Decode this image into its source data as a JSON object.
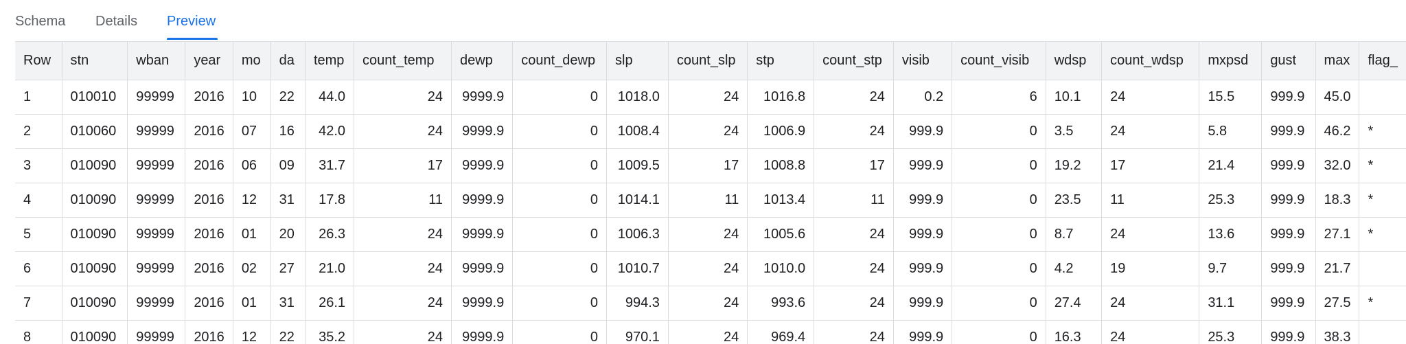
{
  "tabs": [
    {
      "label": "Schema",
      "active": false
    },
    {
      "label": "Details",
      "active": false
    },
    {
      "label": "Preview",
      "active": true
    }
  ],
  "accent_color": "#1a73e8",
  "table": {
    "columns": [
      "Row",
      "stn",
      "wban",
      "year",
      "mo",
      "da",
      "temp",
      "count_temp",
      "dewp",
      "count_dewp",
      "slp",
      "count_slp",
      "stp",
      "count_stp",
      "visib",
      "count_visib",
      "wdsp",
      "count_wdsp",
      "mxpsd",
      "gust",
      "max",
      "flag_"
    ],
    "rows": [
      [
        "1",
        "010010",
        "99999",
        "2016",
        "10",
        "22",
        "44.0",
        "24",
        "9999.9",
        "0",
        "1018.0",
        "24",
        "1016.8",
        "24",
        "0.2",
        "6",
        "10.1",
        "24",
        "15.5",
        "999.9",
        "45.0",
        ""
      ],
      [
        "2",
        "010060",
        "99999",
        "2016",
        "07",
        "16",
        "42.0",
        "24",
        "9999.9",
        "0",
        "1008.4",
        "24",
        "1006.9",
        "24",
        "999.9",
        "0",
        "3.5",
        "24",
        "5.8",
        "999.9",
        "46.2",
        "*"
      ],
      [
        "3",
        "010090",
        "99999",
        "2016",
        "06",
        "09",
        "31.7",
        "17",
        "9999.9",
        "0",
        "1009.5",
        "17",
        "1008.8",
        "17",
        "999.9",
        "0",
        "19.2",
        "17",
        "21.4",
        "999.9",
        "32.0",
        "*"
      ],
      [
        "4",
        "010090",
        "99999",
        "2016",
        "12",
        "31",
        "17.8",
        "11",
        "9999.9",
        "0",
        "1014.1",
        "11",
        "1013.4",
        "11",
        "999.9",
        "0",
        "23.5",
        "11",
        "25.3",
        "999.9",
        "18.3",
        "*"
      ],
      [
        "5",
        "010090",
        "99999",
        "2016",
        "01",
        "20",
        "26.3",
        "24",
        "9999.9",
        "0",
        "1006.3",
        "24",
        "1005.6",
        "24",
        "999.9",
        "0",
        "8.7",
        "24",
        "13.6",
        "999.9",
        "27.1",
        "*"
      ],
      [
        "6",
        "010090",
        "99999",
        "2016",
        "02",
        "27",
        "21.0",
        "24",
        "9999.9",
        "0",
        "1010.7",
        "24",
        "1010.0",
        "24",
        "999.9",
        "0",
        "4.2",
        "19",
        "9.7",
        "999.9",
        "21.7",
        ""
      ],
      [
        "7",
        "010090",
        "99999",
        "2016",
        "01",
        "31",
        "26.1",
        "24",
        "9999.9",
        "0",
        "994.3",
        "24",
        "993.6",
        "24",
        "999.9",
        "0",
        "27.4",
        "24",
        "31.1",
        "999.9",
        "27.5",
        "*"
      ],
      [
        "8",
        "010090",
        "99999",
        "2016",
        "12",
        "22",
        "35.2",
        "24",
        "9999.9",
        "0",
        "970.1",
        "24",
        "969.4",
        "24",
        "999.9",
        "0",
        "16.3",
        "24",
        "25.3",
        "999.9",
        "38.3",
        ""
      ]
    ]
  }
}
